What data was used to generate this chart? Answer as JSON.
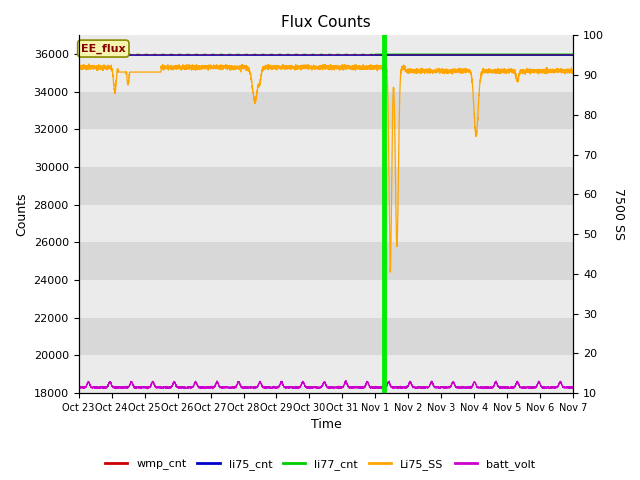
{
  "title": "Flux Counts",
  "xlabel": "Time",
  "ylabel_left": "Counts",
  "ylabel_right": "7500 SS",
  "ylim_left": [
    18000,
    37000
  ],
  "ylim_right": [
    10,
    100
  ],
  "yticks_left": [
    18000,
    20000,
    22000,
    24000,
    26000,
    28000,
    30000,
    32000,
    34000,
    36000
  ],
  "yticks_right": [
    10,
    20,
    30,
    40,
    50,
    60,
    70,
    80,
    90,
    100
  ],
  "xtick_labels": [
    "Oct 23",
    "Oct 24",
    "Oct 25",
    "Oct 26",
    "Oct 27",
    "Oct 28",
    "Oct 29",
    "Oct 30",
    "Oct 31",
    "Nov 1",
    "Nov 2",
    "Nov 3",
    "Nov 4",
    "Nov 5",
    "Nov 6",
    "Nov 7"
  ],
  "annotation_box_text": "EE_flux",
  "annotation_box_color": "#f5f5b0",
  "bg_color_light": "#ebebeb",
  "bg_color_dark": "#d8d8d8",
  "legend_entries": [
    "wmp_cnt",
    "li75_cnt",
    "li77_cnt",
    "Li75_SS",
    "batt_volt"
  ],
  "legend_colors": [
    "#cc0000",
    "#0000cc",
    "#00cc00",
    "#ffa500",
    "#cc00cc"
  ],
  "li77_value": 35980,
  "li75_ss_base": 35300,
  "batt_base": 18300,
  "batt_amp": 250,
  "wmp_value": 35960,
  "li75_cnt_value": 35950,
  "n_points": 5000
}
